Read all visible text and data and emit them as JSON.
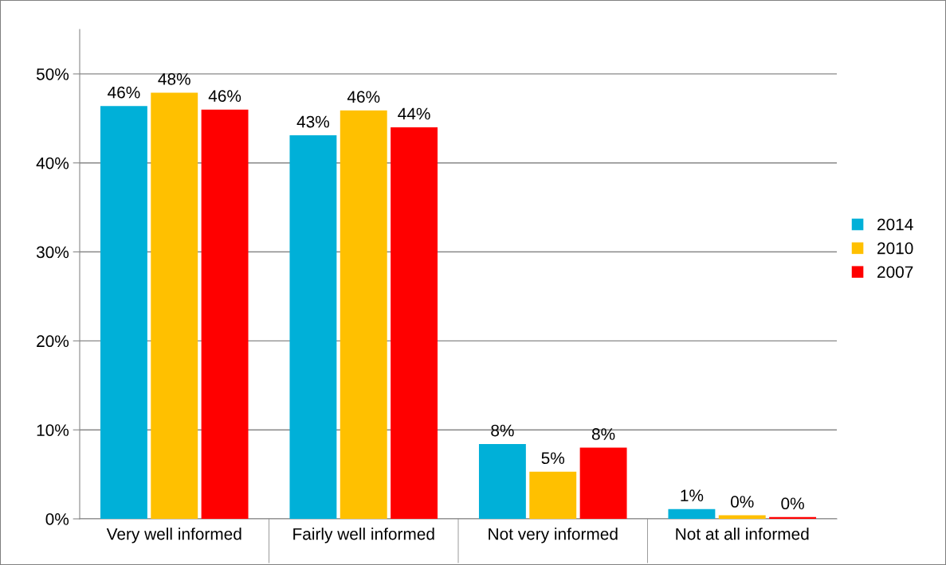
{
  "chart_data": {
    "type": "bar",
    "categories": [
      "Very well informed",
      "Fairly well informed",
      "Not very informed",
      "Not at all informed"
    ],
    "series": [
      {
        "name": "2014",
        "color": "#00b0d8",
        "values": [
          46.4,
          43.1,
          8.4,
          1.1
        ],
        "value_labels": [
          "46%",
          "43%",
          "8%",
          "1%"
        ]
      },
      {
        "name": "2010",
        "color": "#ffc000",
        "values": [
          47.9,
          45.9,
          5.3,
          0.4
        ],
        "value_labels": [
          "48%",
          "46%",
          "5%",
          "0%"
        ]
      },
      {
        "name": "2007",
        "color": "#ff0000",
        "values": [
          46.0,
          44.0,
          8.0,
          0.2
        ],
        "value_labels": [
          "46%",
          "44%",
          "8%",
          "0%"
        ]
      }
    ],
    "ylim": [
      0,
      55
    ],
    "yticks": [
      {
        "value": 0,
        "label": "0%"
      },
      {
        "value": 10,
        "label": "10%"
      },
      {
        "value": 20,
        "label": "20%"
      },
      {
        "value": 30,
        "label": "30%"
      },
      {
        "value": 40,
        "label": "40%"
      },
      {
        "value": 50,
        "label": "50%"
      }
    ],
    "grid": "y",
    "legend": "right"
  }
}
